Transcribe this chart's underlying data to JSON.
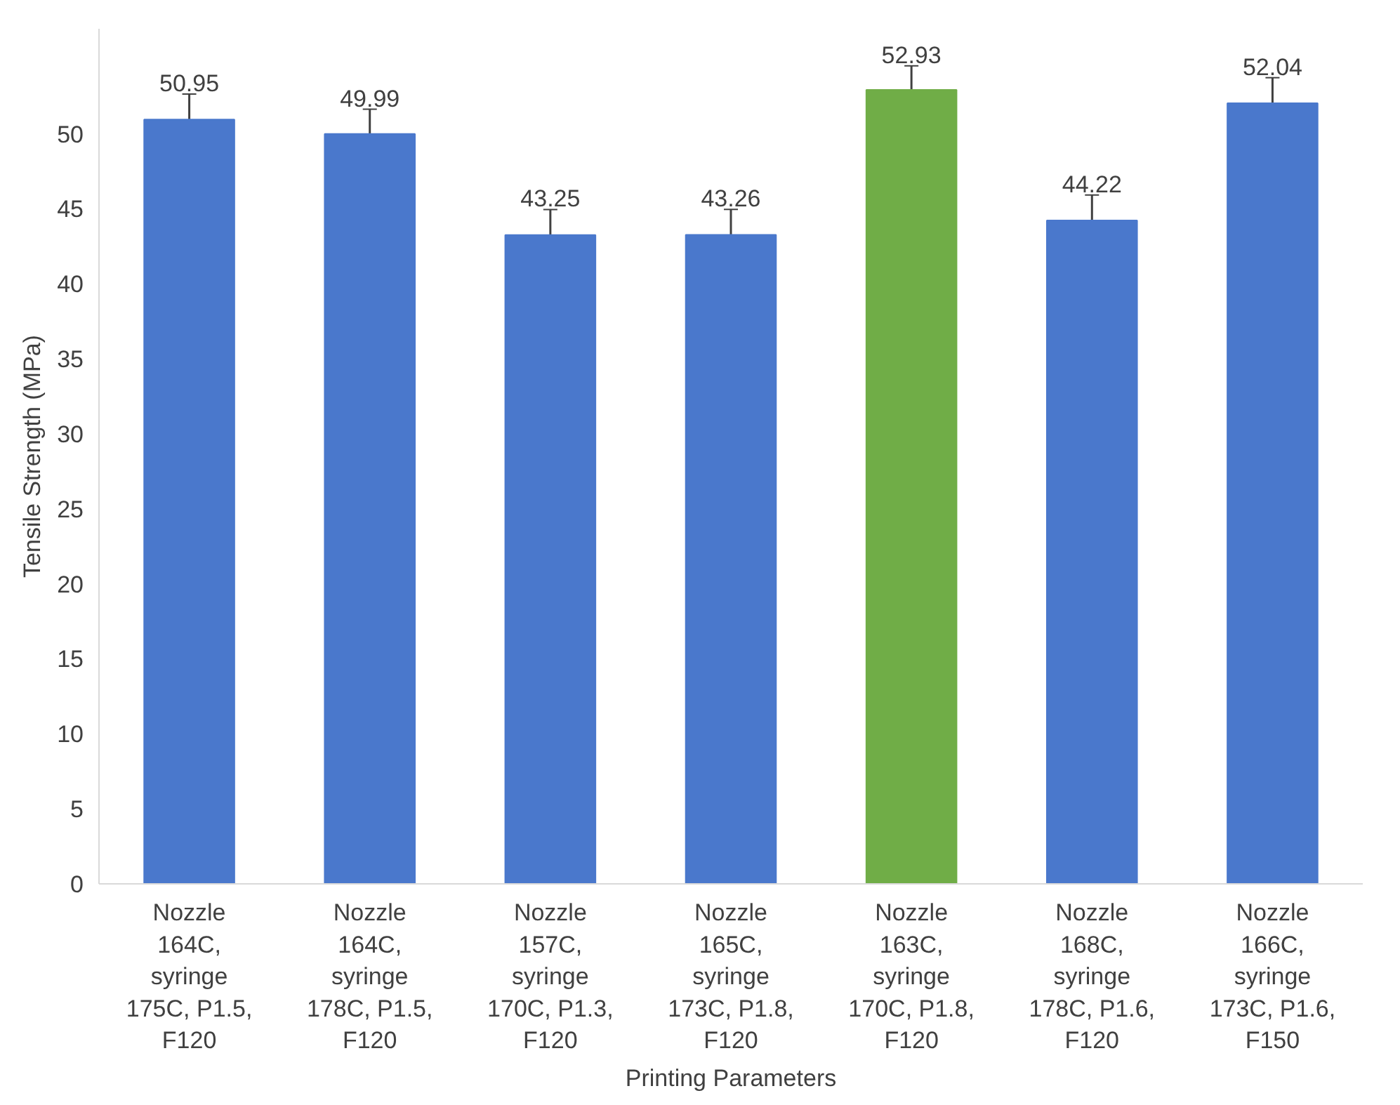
{
  "chart_data": {
    "type": "bar",
    "xlabel": "Printing Parameters",
    "ylabel": "Tensile Strength (MPa)",
    "categories": [
      "Nozzle 164C, syringe 175C, P1.5, F120",
      "Nozzle 164C, syringe 178C, P1.5, F120",
      "Nozzle 157C, syringe 170C, P1.3, F120",
      "Nozzle 165C, syringe 173C, P1.8, F120",
      "Nozzle 163C, syringe 170C, P1.8, F120",
      "Nozzle 168C, syringe 178C, P1.6, F120",
      "Nozzle 166C, syringe 173C, P1.6, F150"
    ],
    "values": [
      50.95,
      49.99,
      43.25,
      43.26,
      52.93,
      44.22,
      52.04
    ],
    "errors": [
      1.7,
      1.65,
      1.7,
      1.7,
      1.6,
      1.7,
      1.7
    ],
    "colors": [
      "#4a78cc",
      "#4a78cc",
      "#4a78cc",
      "#4a78cc",
      "#70ad47",
      "#4a78cc",
      "#4a78cc"
    ],
    "ylim": [
      0,
      57
    ],
    "yticks": [
      0,
      5,
      10,
      15,
      20,
      25,
      30,
      35,
      40,
      45,
      50
    ],
    "grid": false,
    "data_labels": true
  }
}
